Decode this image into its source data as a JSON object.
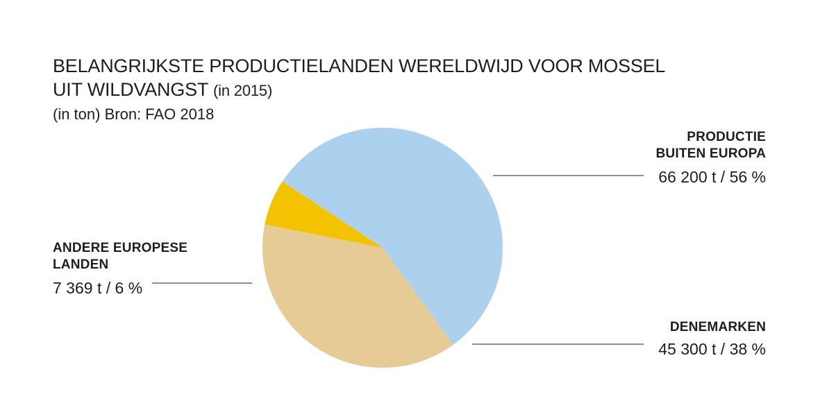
{
  "title_main": "BELANGRIJKSTE PRODUCTIELANDEN WERELDWIJD VOOR MOSSEL",
  "title_line2": "UIT WILDVANGST",
  "title_paren": "(in 2015)",
  "subtitle": "(in ton) Bron: FAO 2018",
  "chart_data": {
    "type": "pie",
    "title": "BELANGRIJKSTE PRODUCTIELANDEN WERELDWIJD VOOR MOSSEL UIT WILDVANGST (in 2015)",
    "subtitle": "(in ton) Bron: FAO 2018",
    "unit": "t",
    "slices": [
      {
        "label": "PRODUCTIE BUITEN EUROPA",
        "value": 66200,
        "percent": 56,
        "color": "#abd1ef",
        "value_label": "66 200 t / 56 %"
      },
      {
        "label": "DENEMARKEN",
        "value": 45300,
        "percent": 38,
        "color": "#e6cb95",
        "value_label": "45 300 t / 38 %"
      },
      {
        "label": "ANDERE EUROPESE LANDEN",
        "value": 7369,
        "percent": 6,
        "color": "#f3c300",
        "value_label": "7 369 t / 6 %"
      }
    ]
  },
  "colors": {
    "leader_line": "#1d1d1b",
    "text": "#1d1d1b"
  }
}
